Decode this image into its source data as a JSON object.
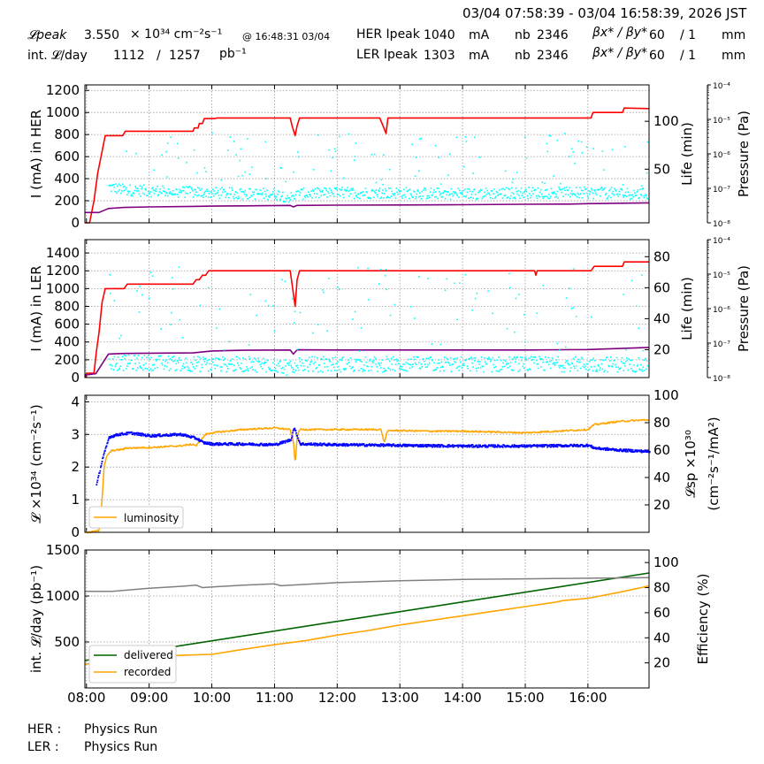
{
  "header": {
    "range": "03/04 07:58:39 - 03/04 16:58:39, 2026 JST",
    "lpeak_label": "𝓛peak",
    "lpeak_value": "3.550",
    "lpeak_unit": "× 10³⁴ cm⁻²s⁻¹",
    "lpeak_at": "@ 16:48:31 03/04",
    "intl_label": "int. 𝓛/day",
    "intl_value": "1112",
    "intl_slash": "/",
    "intl_total": "1257",
    "intl_unit": "pb⁻¹",
    "her_label": "HER Ipeak",
    "her_value": "1040",
    "her_unit": "mA",
    "her_nb_label": "nb",
    "her_nb": "2346",
    "her_beta_label": "βx* / βy*",
    "her_beta_x": "60",
    "her_beta_y": "/ 1",
    "her_beta_unit": "mm",
    "ler_label": "LER Ipeak",
    "ler_value": "1303",
    "ler_unit": "mA",
    "ler_nb_label": "nb",
    "ler_nb": "2346",
    "ler_beta_label": "βx* / βy*",
    "ler_beta_x": "60",
    "ler_beta_y": "/ 1",
    "ler_beta_unit": "mm"
  },
  "footer": {
    "her_label": "HER :",
    "her_status": "Physics Run",
    "ler_label": "LER :",
    "ler_status": "Physics Run"
  },
  "colors": {
    "current": "#ff0000",
    "life": "#00ffff",
    "pressure": "#800080",
    "luminosity": "#ffa500",
    "specific": "#0000ff",
    "delivered": "#006400",
    "recorded": "#ffa500",
    "efficiency": "#808080",
    "grid": "#999999"
  },
  "chart_data": [
    {
      "type": "line",
      "ylabel": "I (mA) in HER",
      "ylabel2": "Life (min)",
      "ylabel3": "Pressure (Pa)",
      "ylim": [
        0,
        1250
      ],
      "yticks": [
        0,
        200,
        400,
        600,
        800,
        1000,
        1200
      ],
      "y2lim": [
        -6,
        138
      ],
      "y2ticks": [
        50,
        100
      ],
      "y3ticks": [
        "10⁻⁸",
        "10⁻⁷",
        "10⁻⁶",
        "10⁻⁵",
        "10⁻⁴"
      ],
      "series": [
        {
          "role": "current",
          "x": [
            7.975,
            8.05,
            8.12,
            8.18,
            8.25,
            8.3,
            8.35,
            8.4,
            8.58,
            8.62,
            9.7,
            9.72,
            9.78,
            9.8,
            9.85,
            9.88,
            10.05,
            10.08,
            11.25,
            11.28,
            11.33,
            11.36,
            11.4,
            12.68,
            12.73,
            12.78,
            12.81,
            15.4,
            15.43,
            16.05,
            16.08,
            16.55,
            16.58,
            16.975
          ],
          "y": [
            0,
            0,
            200,
            450,
            650,
            790,
            790,
            790,
            790,
            830,
            830,
            860,
            860,
            900,
            900,
            945,
            945,
            950,
            950,
            880,
            790,
            880,
            950,
            950,
            880,
            810,
            950,
            950,
            950,
            950,
            1000,
            1000,
            1040,
            1035
          ]
        },
        {
          "role": "pressure",
          "x": [
            7.975,
            8.2,
            8.35,
            8.6,
            9.0,
            9.7,
            10.0,
            10.5,
            11.25,
            11.3,
            11.36,
            12.0,
            13.0,
            14.0,
            15.0,
            15.7,
            16.0,
            16.975
          ],
          "y": [
            2e-08,
            2e-08,
            2.6e-08,
            2.8e-08,
            2.9e-08,
            3e-08,
            3.05e-08,
            3.1e-08,
            3.2e-08,
            2.9e-08,
            3.2e-08,
            3.25e-08,
            3.3e-08,
            3.35e-08,
            3.45e-08,
            3.5e-08,
            3.6e-08,
            3.8e-08
          ]
        },
        {
          "role": "life",
          "dots": true,
          "base": 28,
          "jitter": 6,
          "x_start": 8.35,
          "x_end": 16.95,
          "x": [
            8.35,
            8.6,
            9.0,
            9.5,
            10.0,
            10.5,
            11.0,
            11.25,
            11.4,
            12.0,
            13.0,
            14.0,
            15.0,
            16.0,
            16.95
          ],
          "y": [
            32,
            29,
            28,
            27,
            26,
            25,
            25,
            21,
            25,
            26,
            26,
            25,
            26,
            26,
            25
          ]
        }
      ]
    },
    {
      "type": "line",
      "ylabel": "I (mA) in LER",
      "ylabel2": "Life (min)",
      "ylabel3": "Pressure (Pa)",
      "ylim": [
        0,
        1550
      ],
      "yticks": [
        0,
        200,
        400,
        600,
        800,
        1000,
        1200,
        1400
      ],
      "y2lim": [
        2,
        91
      ],
      "y2ticks": [
        20,
        40,
        60,
        80
      ],
      "y3ticks": [
        "10⁻⁸",
        "10⁻⁷",
        "10⁻⁶",
        "10⁻⁵",
        "10⁻⁴"
      ],
      "series": [
        {
          "role": "current",
          "x": [
            7.975,
            8.0,
            8.12,
            8.16,
            8.2,
            8.25,
            8.3,
            8.35,
            8.6,
            8.65,
            9.7,
            9.75,
            9.8,
            9.85,
            9.9,
            9.95,
            11.25,
            11.28,
            11.33,
            11.36,
            11.4,
            15.15,
            15.17,
            15.19,
            16.05,
            16.1,
            16.55,
            16.58,
            16.975
          ],
          "y": [
            0,
            50,
            50,
            300,
            500,
            850,
            1000,
            1000,
            1000,
            1050,
            1050,
            1100,
            1100,
            1150,
            1150,
            1200,
            1200,
            1050,
            800,
            1100,
            1200,
            1200,
            1150,
            1200,
            1200,
            1250,
            1250,
            1300,
            1300
          ]
        },
        {
          "role": "pressure",
          "x": [
            7.975,
            8.0,
            8.15,
            8.35,
            8.6,
            9.0,
            9.7,
            10.0,
            10.5,
            11.25,
            11.3,
            11.36,
            12.0,
            13.0,
            14.0,
            15.0,
            16.0,
            16.975
          ],
          "y": [
            1.2e-08,
            1.2e-08,
            1.3e-08,
            4.8e-08,
            5e-08,
            5.1e-08,
            5.2e-08,
            5.9e-08,
            6.2e-08,
            6.3e-08,
            4.8e-08,
            6.4e-08,
            6.3e-08,
            6.3e-08,
            6.3e-08,
            6.3e-08,
            6.5e-08,
            7.5e-08
          ]
        },
        {
          "role": "life",
          "dots": true,
          "base": 13,
          "jitter": 5,
          "x_start": 8.35,
          "x_end": 16.95,
          "x": [
            8.35,
            9.0,
            10.0,
            11.0,
            11.25,
            11.4,
            12.0,
            13.0,
            14.0,
            15.0,
            16.0,
            16.95
          ],
          "y": [
            12,
            12,
            11,
            11,
            8,
            11,
            11,
            11,
            11,
            11,
            11,
            11
          ]
        }
      ]
    },
    {
      "type": "line",
      "ylabel": "𝓛 ×10³⁴ (cm⁻²s⁻¹)",
      "ylabel2": "𝓛sp ×10³⁰",
      "ylabel2b": "(cm⁻²s⁻¹/mA²)",
      "ylim": [
        0,
        4.2
      ],
      "yticks": [
        0,
        1,
        2,
        3,
        4
      ],
      "y2lim": [
        0,
        100
      ],
      "y2ticks": [
        20,
        40,
        60,
        80,
        100
      ],
      "legend": "luminosity",
      "series": [
        {
          "role": "luminosity",
          "x": [
            7.975,
            8.05,
            8.2,
            8.25,
            8.28,
            8.32,
            8.35,
            8.4,
            8.6,
            8.62,
            9.0,
            9.3,
            9.5,
            9.7,
            9.75,
            9.9,
            10.0,
            10.5,
            11.0,
            11.25,
            11.3,
            11.33,
            11.36,
            11.4,
            12.0,
            12.7,
            12.75,
            12.8,
            12.9,
            13.5,
            14.0,
            15.0,
            15.5,
            16.0,
            16.1,
            16.5,
            16.975
          ],
          "y": [
            0,
            0,
            0.05,
            1.0,
            2.0,
            2.3,
            2.4,
            2.5,
            2.55,
            2.58,
            2.6,
            2.63,
            2.65,
            2.7,
            2.65,
            3.0,
            3.05,
            3.15,
            3.2,
            3.15,
            2.8,
            2.1,
            2.9,
            3.15,
            3.15,
            3.15,
            2.75,
            3.1,
            3.12,
            3.1,
            3.1,
            3.05,
            3.1,
            3.15,
            3.3,
            3.4,
            3.45
          ]
        },
        {
          "role": "specific",
          "dots": true,
          "x": [
            8.15,
            8.2,
            8.25,
            8.3,
            8.35,
            8.5,
            8.7,
            9.0,
            9.5,
            9.75,
            9.85,
            10.0,
            10.5,
            11.0,
            11.25,
            11.3,
            11.4,
            12.0,
            13.0,
            14.0,
            15.0,
            16.0,
            16.1,
            16.5,
            16.975
          ],
          "y": [
            35,
            45,
            55,
            62,
            70,
            72,
            73,
            71,
            72,
            69,
            66,
            65,
            65,
            64.5,
            68,
            77,
            65,
            64.5,
            64,
            63.5,
            63.5,
            64,
            62,
            60.5,
            59.5
          ]
        }
      ]
    },
    {
      "type": "line",
      "ylabel": "int. 𝓛/day (pb⁻¹)",
      "ylabel2": "Efficiency (%)",
      "ylim": [
        0,
        1500
      ],
      "yticks": [
        500,
        1000,
        1500
      ],
      "y2lim": [
        0,
        110
      ],
      "y2ticks": [
        20,
        40,
        60,
        80,
        100
      ],
      "legend_delivered": "delivered",
      "legend_recorded": "recorded",
      "series": [
        {
          "role": "delivered",
          "name": "delivered",
          "x": [
            7.975,
            16.975
          ],
          "y": [
            298,
            1250
          ]
        },
        {
          "role": "recorded",
          "name": "recorded",
          "x": [
            7.975,
            8.5,
            9.0,
            9.5,
            10.0,
            10.5,
            11.0,
            11.5,
            12.0,
            12.5,
            13.0,
            13.5,
            14.0,
            14.5,
            15.0,
            15.5,
            15.6,
            16.0,
            16.5,
            16.975
          ],
          "y": [
            258,
            300,
            330,
            355,
            365,
            420,
            470,
            515,
            575,
            625,
            685,
            735,
            785,
            835,
            885,
            935,
            950,
            975,
            1040,
            1110
          ]
        },
        {
          "role": "efficiency",
          "x": [
            7.975,
            8.4,
            9.0,
            9.5,
            9.75,
            9.85,
            10.5,
            11.0,
            11.1,
            12.0,
            13.0,
            14.0,
            15.0,
            16.0,
            16.975
          ],
          "y": [
            77,
            77,
            79.5,
            81,
            82,
            80,
            82,
            83,
            81.5,
            84,
            85.5,
            86.5,
            87,
            87.5,
            88
          ]
        }
      ]
    }
  ],
  "xaxis": {
    "ticks": [
      8,
      9,
      10,
      11,
      12,
      13,
      14,
      15,
      16
    ],
    "labels": [
      "08:00",
      "09:00",
      "10:00",
      "11:00",
      "12:00",
      "13:00",
      "14:00",
      "15:00",
      "16:00"
    ],
    "xlim": [
      7.975,
      16.975
    ]
  }
}
